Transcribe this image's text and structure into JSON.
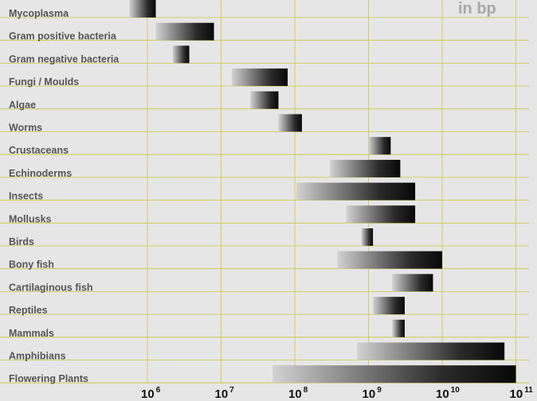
{
  "chart_data": {
    "type": "bar",
    "subtype": "floating-range, horizontal, log x-axis",
    "unit_label": "in bp",
    "x_scale": "log10",
    "xlim": [
      100000,
      120000000000
    ],
    "x_ticks": [
      {
        "base": "10",
        "exp": "6",
        "value": 1000000
      },
      {
        "base": "10",
        "exp": "7",
        "value": 10000000
      },
      {
        "base": "10",
        "exp": "8",
        "value": 100000000
      },
      {
        "base": "10",
        "exp": "9",
        "value": 1000000000
      },
      {
        "base": "10",
        "exp": "10",
        "value": 10000000000
      },
      {
        "base": "10",
        "exp": "11",
        "value": 100000000000
      }
    ],
    "grid": true,
    "categories": [
      "Mycoplasma",
      "Gram positive bacteria",
      "Gram negative bacteria",
      "Fungi / Moulds",
      "Algae",
      "Worms",
      "Crustaceans",
      "Echinoderms",
      "Insects",
      "Mollusks",
      "Birds",
      "Bony fish",
      "Cartilaginous fish",
      "Reptiles",
      "Mammals",
      "Amphibians",
      "Flowering Plants"
    ],
    "ranges": [
      [
        570000,
        1300000
      ],
      [
        1300000,
        8000000
      ],
      [
        2200000,
        3700000
      ],
      [
        14000000,
        80000000
      ],
      [
        25000000,
        60000000
      ],
      [
        60000000,
        125000000
      ],
      [
        1000000000,
        2000000000
      ],
      [
        300000000,
        2700000000
      ],
      [
        105000000,
        4300000000
      ],
      [
        500000000,
        4300000000
      ],
      [
        800000000,
        1150000000
      ],
      [
        380000000,
        10000000000
      ],
      [
        2100000000,
        7500000000
      ],
      [
        1150000000,
        3100000000
      ],
      [
        2100000000,
        3100000000
      ],
      [
        700000000,
        70000000000
      ],
      [
        50000000,
        100000000000
      ]
    ],
    "colors": {
      "background": "#e6e6e6",
      "grid": "#c8c840",
      "bar_light": "#d2d2d2",
      "bar_dark": "#2a2a2a",
      "bar_darkest": "#080808",
      "label": "#555555",
      "unit_label": "#a8a8a8"
    }
  }
}
